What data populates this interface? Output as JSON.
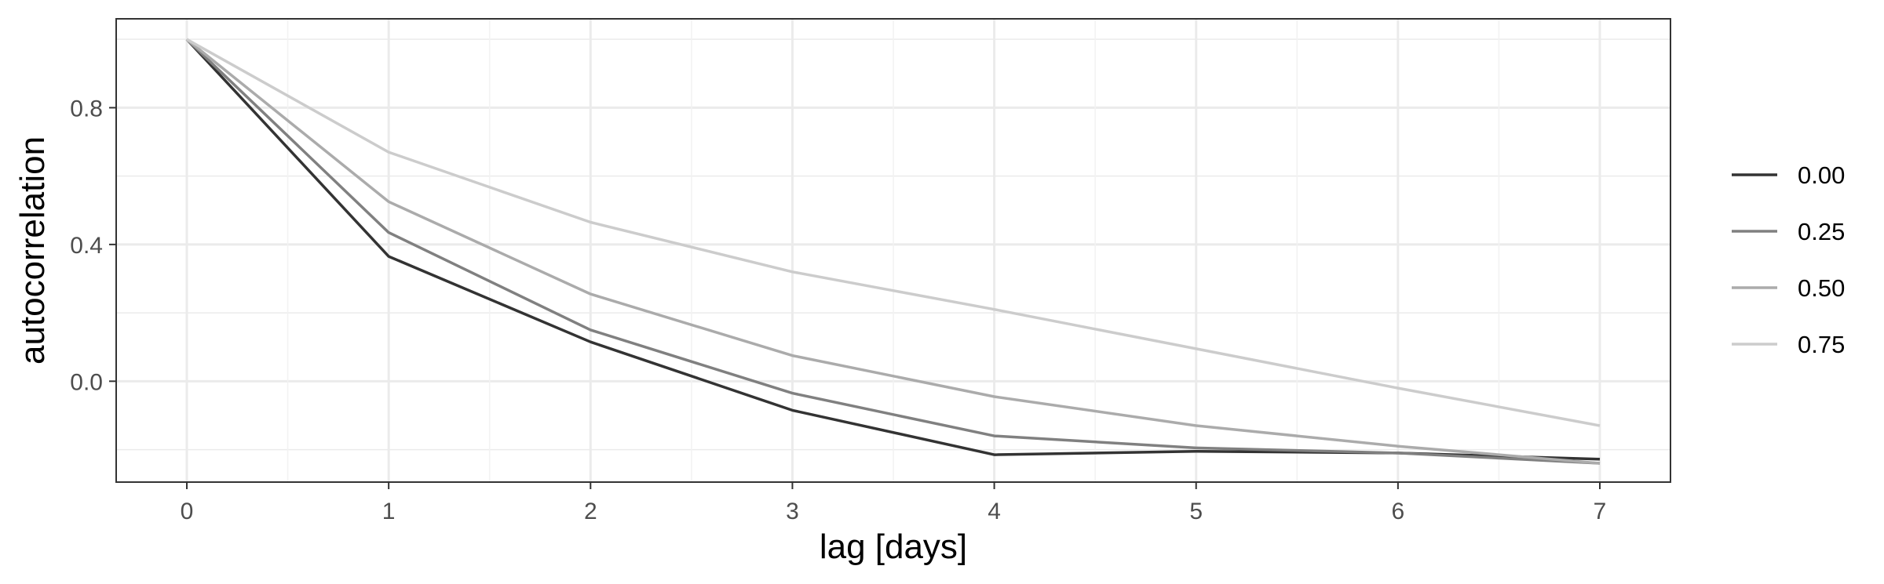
{
  "chart_data": {
    "type": "line",
    "xlabel": "lag [days]",
    "ylabel": "autocorrelation",
    "x": [
      0,
      1,
      2,
      3,
      4,
      5,
      6,
      7
    ],
    "xlim": [
      -0.35,
      7.35
    ],
    "ylim": [
      -0.295,
      1.06
    ],
    "xticks": [
      0,
      1,
      2,
      3,
      4,
      5,
      6,
      7
    ],
    "yticks": [
      0.0,
      0.4,
      0.8
    ],
    "ytick_labels": [
      "0.0",
      "0.4",
      "0.8"
    ],
    "grid": true,
    "legend_position": "right",
    "series": [
      {
        "name": "0.00",
        "color": "#333333",
        "values": [
          1.0,
          0.365,
          0.115,
          -0.085,
          -0.215,
          -0.205,
          -0.21,
          -0.228
        ]
      },
      {
        "name": "0.25",
        "color": "#808080",
        "values": [
          1.0,
          0.435,
          0.15,
          -0.035,
          -0.16,
          -0.195,
          -0.21,
          -0.24
        ]
      },
      {
        "name": "0.50",
        "color": "#ababab",
        "values": [
          1.0,
          0.525,
          0.255,
          0.075,
          -0.045,
          -0.13,
          -0.19,
          -0.24
        ]
      },
      {
        "name": "0.75",
        "color": "#cccccc",
        "values": [
          1.0,
          0.67,
          0.465,
          0.32,
          0.21,
          0.095,
          -0.02,
          -0.13
        ]
      }
    ]
  }
}
